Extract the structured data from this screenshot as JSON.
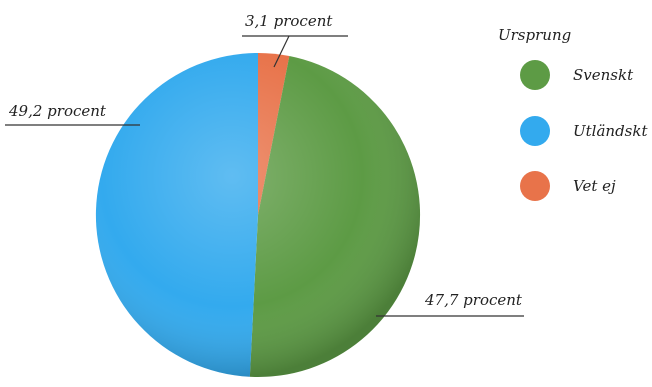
{
  "chart_data": {
    "type": "pie",
    "title": "",
    "start_angle": "12 o'clock, clockwise",
    "slices": [
      {
        "name": "Vet ej",
        "value": 3.1,
        "label": "3,1 procent",
        "color": "#e8734a"
      },
      {
        "name": "Svenskt",
        "value": 47.7,
        "label": "47,7 procent",
        "color": "#5d9b45"
      },
      {
        "name": "Utländskt",
        "value": 49.2,
        "label": "49,2 procent",
        "color": "#33aaee"
      }
    ],
    "legend": {
      "title": "Ursprung",
      "placement": "right",
      "entries": [
        {
          "label": "Svenskt",
          "color": "#5d9b45"
        },
        {
          "label": "Utländskt",
          "color": "#33aaee"
        },
        {
          "label": "Vet ej",
          "color": "#e8734a"
        }
      ]
    }
  }
}
